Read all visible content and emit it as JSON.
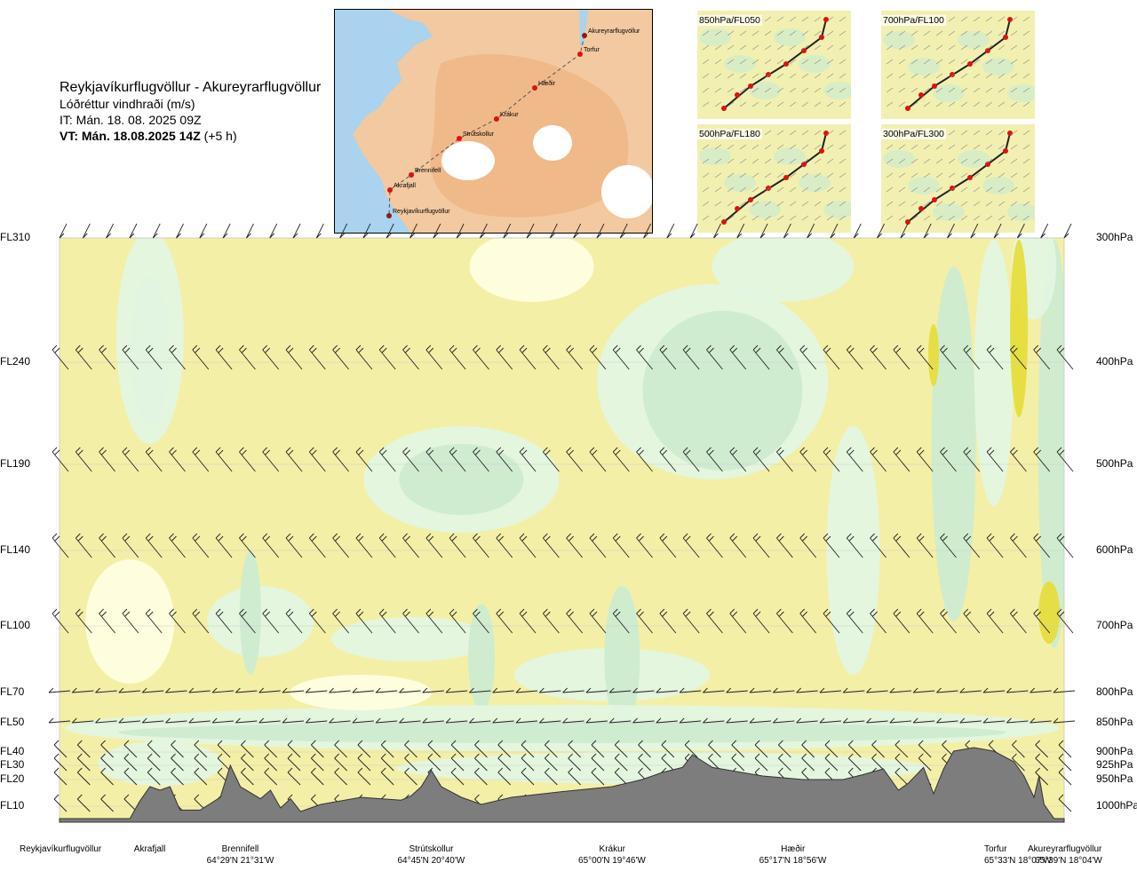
{
  "header": {
    "route": "Reykjavíkurflugvöllur - Akureyrarflugvöllur",
    "variable": "Lóðréttur vindhraði (m/s)",
    "it": "IT: Mán. 18. 08. 2025 09Z",
    "vt_bold": "VT: Mán. 18.08.2025 14Z",
    "vt_rest": " (+5 h)"
  },
  "map": {
    "points": [
      {
        "name": "Akureyrarflugvöllur",
        "lon": -18.07
      },
      {
        "name": "Torfur",
        "lon": -18.12
      },
      {
        "name": "Hæðir",
        "lon": -18.93
      },
      {
        "name": "Krákur",
        "lon": -19.77
      },
      {
        "name": "Strútskollur",
        "lon": -20.67
      },
      {
        "name": "Brennifell",
        "lon": -21.52
      },
      {
        "name": "Akrafjall",
        "lon": -21.95
      },
      {
        "name": "Reykjavíkurflugvöllur",
        "lon": -21.94
      }
    ]
  },
  "panels": [
    {
      "label": "850hPa/FL050"
    },
    {
      "label": "700hPa/FL100"
    },
    {
      "label": "500hPa/FL180"
    },
    {
      "label": "300hPa/FL300"
    }
  ],
  "colors": {
    "down_strong": "#e6dd3c",
    "down": "#f4efa6",
    "neutral": "#fefee0",
    "up_weak": "#e3f5e0",
    "up": "#cdebd0",
    "terrain": "#7d7d7d",
    "sea": "#a9d3ee",
    "land": "#f2c9a0"
  },
  "chart_data": {
    "type": "heatmap",
    "title": "Reykjavíkurflugvöllur - Akureyrarflugvöllur",
    "xlabel": "",
    "ylabel": "",
    "levels": [
      {
        "fl": "FL310",
        "hpa": "300hPa"
      },
      {
        "fl": "FL240",
        "hpa": "400hPa"
      },
      {
        "fl": "FL190",
        "hpa": "500hPa"
      },
      {
        "fl": "FL140",
        "hpa": "600hPa"
      },
      {
        "fl": "FL100",
        "hpa": "700hPa"
      },
      {
        "fl": "FL70",
        "hpa": "800hPa"
      },
      {
        "fl": "FL50",
        "hpa": "850hPa"
      },
      {
        "fl": "FL40",
        "hpa": "900hPa"
      },
      {
        "fl": "FL30",
        "hpa": "925hPa"
      },
      {
        "fl": "FL20",
        "hpa": "950hPa"
      },
      {
        "fl": "FL10",
        "hpa": "1000hPa"
      }
    ],
    "locations": [
      {
        "name": "Reykjavíkurflugvöllur",
        "coord": "",
        "dist": 0.0
      },
      {
        "name": "Akrafjall",
        "coord": "",
        "dist": 0.09
      },
      {
        "name": "Brennifell",
        "coord": "64°29'N 21°31'W",
        "dist": 0.18
      },
      {
        "name": "Strútskollur",
        "coord": "64°45'N 20°40'W",
        "dist": 0.37
      },
      {
        "name": "Krákur",
        "coord": "65°00'N 19°46'W",
        "dist": 0.55
      },
      {
        "name": "Hæðir",
        "coord": "65°17'N 18°56'W",
        "dist": 0.73
      },
      {
        "name": "Torfur",
        "coord": "65°33'N 18°07'W",
        "dist": 0.94
      },
      {
        "name": "Akureyrarflugvöllur",
        "coord": "65°39'N 18°04'W",
        "dist": 1.0
      }
    ],
    "terrain": [
      [
        0.0,
        0.0
      ],
      [
        0.07,
        0.0
      ],
      [
        0.08,
        0.25
      ],
      [
        0.09,
        0.45
      ],
      [
        0.1,
        0.4
      ],
      [
        0.11,
        0.45
      ],
      [
        0.12,
        0.12
      ],
      [
        0.14,
        0.12
      ],
      [
        0.16,
        0.3
      ],
      [
        0.17,
        0.75
      ],
      [
        0.18,
        0.45
      ],
      [
        0.2,
        0.28
      ],
      [
        0.21,
        0.4
      ],
      [
        0.22,
        0.15
      ],
      [
        0.23,
        0.28
      ],
      [
        0.24,
        0.1
      ],
      [
        0.26,
        0.2
      ],
      [
        0.3,
        0.3
      ],
      [
        0.34,
        0.26
      ],
      [
        0.35,
        0.32
      ],
      [
        0.36,
        0.45
      ],
      [
        0.37,
        0.68
      ],
      [
        0.38,
        0.45
      ],
      [
        0.4,
        0.3
      ],
      [
        0.42,
        0.2
      ],
      [
        0.45,
        0.3
      ],
      [
        0.5,
        0.38
      ],
      [
        0.55,
        0.45
      ],
      [
        0.58,
        0.55
      ],
      [
        0.6,
        0.65
      ],
      [
        0.62,
        0.72
      ],
      [
        0.63,
        0.9
      ],
      [
        0.65,
        0.72
      ],
      [
        0.7,
        0.6
      ],
      [
        0.74,
        0.55
      ],
      [
        0.78,
        0.55
      ],
      [
        0.8,
        0.62
      ],
      [
        0.82,
        0.7
      ],
      [
        0.835,
        0.4
      ],
      [
        0.845,
        0.5
      ],
      [
        0.86,
        0.72
      ],
      [
        0.87,
        0.35
      ],
      [
        0.88,
        0.7
      ],
      [
        0.89,
        0.95
      ],
      [
        0.91,
        1.0
      ],
      [
        0.93,
        0.95
      ],
      [
        0.95,
        0.8
      ],
      [
        0.96,
        0.6
      ],
      [
        0.97,
        0.3
      ],
      [
        0.975,
        0.6
      ],
      [
        0.98,
        0.2
      ],
      [
        0.99,
        0.0
      ],
      [
        1.0,
        0.0
      ]
    ]
  }
}
